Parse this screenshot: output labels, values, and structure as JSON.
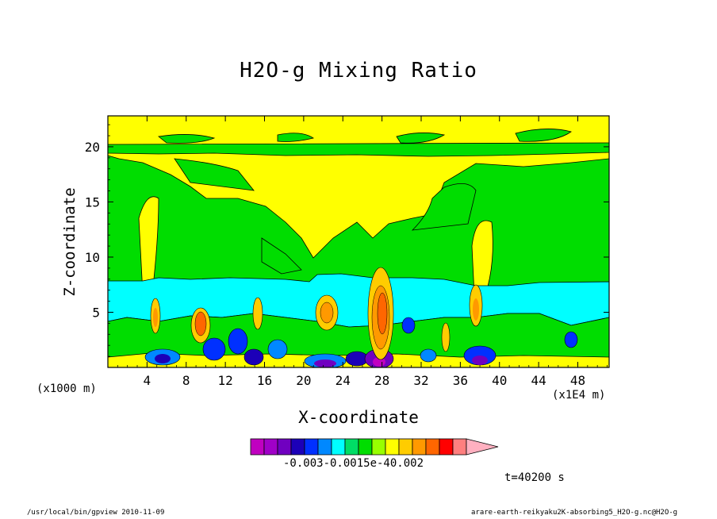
{
  "chart_data": {
    "type": "heatmap",
    "title": "H2O-g Mixing Ratio",
    "xlabel": "X-coordinate",
    "ylabel": "Z-coordinate",
    "x_scale_label": "(x1000 m)",
    "x_unit_label": "(x1E4 m)",
    "xticks": [
      "4",
      "8",
      "12",
      "16",
      "20",
      "24",
      "28",
      "32",
      "36",
      "40",
      "44",
      "48"
    ],
    "yticks": [
      "5",
      "10",
      "15",
      "20"
    ],
    "xlim": [
      0,
      51.2
    ],
    "ylim": [
      0,
      22.8
    ],
    "colorbar": {
      "colors": [
        "#c000c0",
        "#a000c8",
        "#7000c0",
        "#1c00b8",
        "#0030ff",
        "#0088ff",
        "#00ffff",
        "#00dd66",
        "#00dd00",
        "#99ff00",
        "#ffff00",
        "#ffcc00",
        "#ff9900",
        "#ff6600",
        "#ff0000",
        "#ff7f7f",
        "#ffb0c0"
      ],
      "tick_text": "-0.003-0.0015e-40.002"
    },
    "time_label": "t=40200 s",
    "footer_left": "/usr/local/bin/gpview  2010-11-09",
    "footer_right": "arare-earth-reikyaku2K-absorbing5_H2O-g.nc@H2O-g"
  }
}
